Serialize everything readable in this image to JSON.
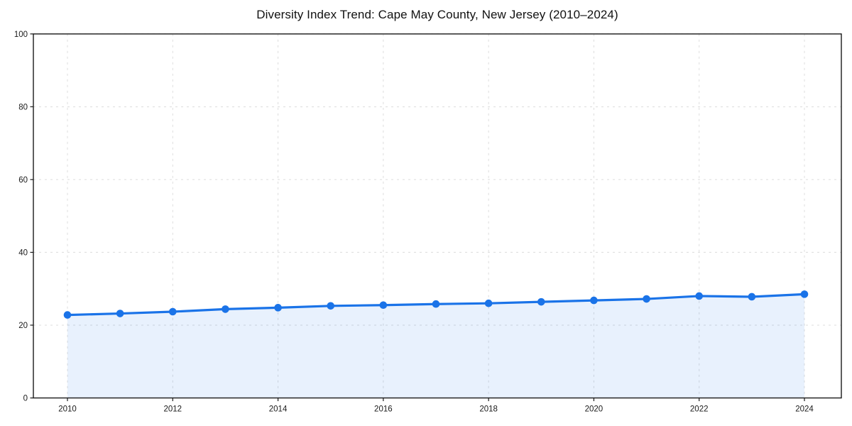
{
  "chart_data": {
    "type": "line",
    "title": "Diversity Index Trend: Cape May County, New Jersey (2010–2024)",
    "xlabel": "",
    "ylabel": "",
    "x": [
      2010,
      2011,
      2012,
      2013,
      2014,
      2015,
      2016,
      2017,
      2018,
      2019,
      2020,
      2021,
      2022,
      2023,
      2024
    ],
    "values": [
      22.8,
      23.2,
      23.7,
      24.4,
      24.8,
      25.3,
      25.5,
      25.8,
      26.0,
      26.4,
      26.8,
      27.2,
      28.0,
      27.8,
      28.5
    ],
    "series_name": "Diversity Index",
    "xticks": [
      2010,
      2012,
      2014,
      2016,
      2018,
      2020,
      2022,
      2024
    ],
    "yticks": [
      0,
      20,
      40,
      60,
      80,
      100
    ],
    "xlim": [
      2010,
      2024
    ],
    "ylim": [
      0,
      100
    ],
    "grid": "dashed",
    "legend": "none",
    "area_fill": true,
    "marker": "circle",
    "colors": {
      "line": "#1a73e8",
      "fill": "rgba(26,115,232,0.10)",
      "grid": "#dcdcdc",
      "axis": "#1a1a1a",
      "text": "#1a1a1a",
      "background": "#ffffff"
    }
  }
}
